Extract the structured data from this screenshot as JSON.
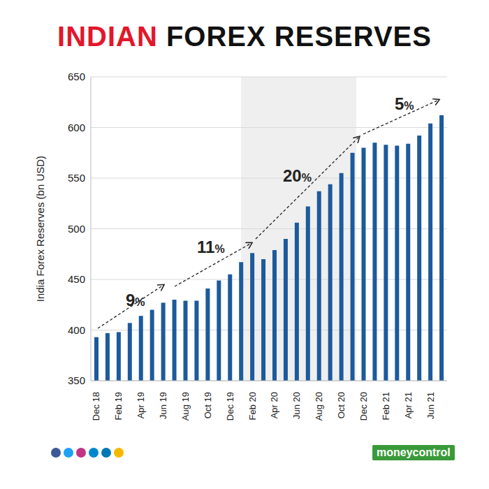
{
  "chart_data": {
    "type": "bar",
    "title": "INDIAN FOREX RESERVES",
    "y_label": "India Forex Reserves (bn USD)",
    "categories": [
      "Dec 18",
      null,
      "Feb 19",
      null,
      "Apr 19",
      null,
      "Jun 19",
      null,
      "Aug 19",
      null,
      "Oct 19",
      null,
      "Dec 19",
      null,
      "Feb 20",
      null,
      "Apr 20",
      null,
      "Jun 20",
      null,
      "Aug 20",
      null,
      "Oct 20",
      null,
      "Dec 20",
      null,
      "Feb 21",
      null,
      "Apr 21",
      null,
      "Jun 21",
      null
    ],
    "values": [
      393,
      397,
      398,
      407,
      414,
      420,
      427,
      430,
      429,
      429,
      441,
      449,
      455,
      467,
      476,
      470,
      479,
      490,
      506,
      522,
      537,
      544,
      555,
      575,
      580,
      585,
      583,
      582,
      584,
      592,
      604,
      612
    ],
    "color": "#1c5a9c",
    "ylim": [
      350,
      650
    ],
    "yticks": [
      350,
      400,
      450,
      500,
      550,
      600,
      650
    ],
    "grid": true,
    "annotations": [
      "9%",
      "11%",
      "20%",
      "5%"
    ],
    "source": "moneycontrol"
  }
}
